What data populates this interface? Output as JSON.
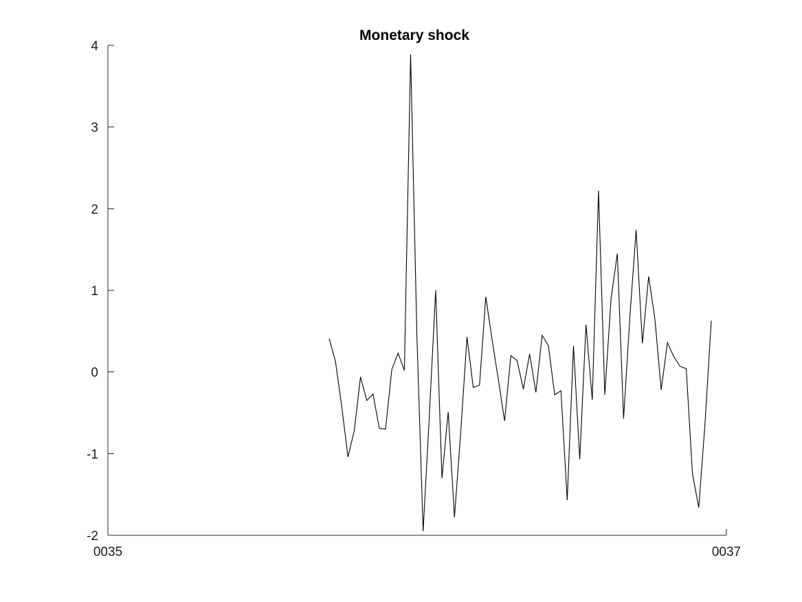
{
  "chart_data": {
    "type": "line",
    "title": "Monetary shock",
    "xlabel": "",
    "ylabel": "",
    "xlim": [
      "0035",
      "0037"
    ],
    "ylim": [
      -2,
      4
    ],
    "x_ticks": [
      "0035",
      "0037"
    ],
    "y_ticks": [
      4,
      3,
      2,
      1,
      0,
      -1,
      -2
    ],
    "grid": false,
    "legend": "none",
    "colors": {
      "line": "#000000",
      "axes": "#262626",
      "text": "#1a1a1a",
      "background": "#ffffff"
    },
    "series": [
      {
        "values": [
          0.41,
          0.13,
          -0.42,
          -1.04,
          -0.72,
          -0.06,
          -0.35,
          -0.27,
          -0.69,
          -0.7,
          0.03,
          0.23,
          0.02,
          3.89,
          0.45,
          -1.95,
          -0.52,
          1.0,
          -1.3,
          -0.49,
          -1.78,
          -0.74,
          0.43,
          -0.19,
          -0.16,
          0.92,
          0.4,
          -0.09,
          -0.6,
          0.2,
          0.14,
          -0.21,
          0.22,
          -0.25,
          0.45,
          0.32,
          -0.28,
          -0.23,
          -1.57,
          0.32,
          -1.07,
          0.58,
          -0.34,
          2.22,
          -0.28,
          0.9,
          1.45,
          -0.57,
          0.67,
          1.74,
          0.35,
          1.17,
          0.65,
          -0.22,
          0.36,
          0.19,
          0.07,
          0.04,
          -1.25,
          -1.66,
          -0.63,
          0.63
        ]
      }
    ]
  }
}
